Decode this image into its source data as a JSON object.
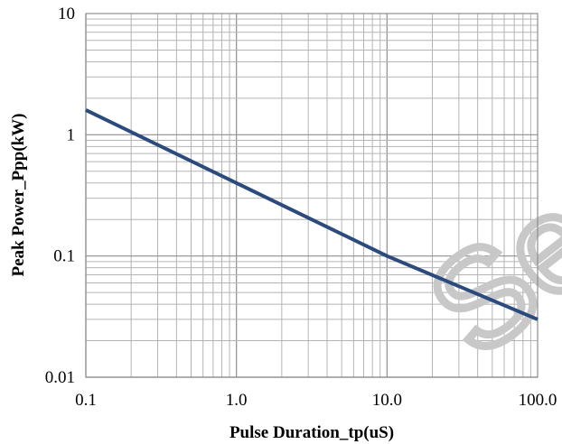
{
  "chart_data": {
    "type": "line",
    "x_scale": "log",
    "y_scale": "log",
    "xlim": [
      0.1,
      100
    ],
    "ylim": [
      0.01,
      10
    ],
    "xlabel": "Pulse Duration_tp(uS)",
    "ylabel": "Peak  Power_Ppp(kW)",
    "x_ticks": [
      {
        "value": 0.1,
        "label": "0.1"
      },
      {
        "value": 1,
        "label": "1.0"
      },
      {
        "value": 10,
        "label": "10.0"
      },
      {
        "value": 100,
        "label": "100.0"
      }
    ],
    "y_ticks": [
      {
        "value": 0.01,
        "label": "0.01"
      },
      {
        "value": 0.1,
        "label": "0.1"
      },
      {
        "value": 1,
        "label": "1"
      },
      {
        "value": 10,
        "label": "10"
      }
    ],
    "grid": true,
    "legend": "none",
    "series": [
      {
        "color": "#2b4a7e",
        "x": [
          0.1,
          1,
          10,
          100
        ],
        "y": [
          1.6,
          0.4,
          0.1,
          0.03
        ]
      }
    ]
  },
  "watermark": {
    "text": "Se",
    "color": "#c8c8c8"
  }
}
